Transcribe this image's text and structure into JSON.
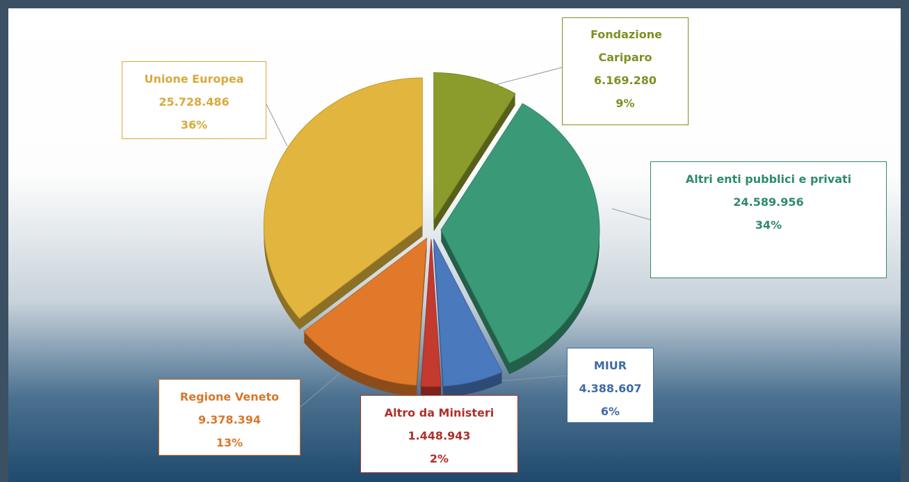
{
  "chart_data": {
    "type": "pie",
    "categories": [
      "Fondazione Cariparo",
      "Altri enti pubblici  e privati",
      "MIUR",
      "Altro da Ministeri",
      "Regione Veneto",
      "Unione Europea"
    ],
    "values": [
      6169280,
      24589956,
      4388607,
      1448943,
      9378394,
      25728486
    ],
    "value_labels": [
      "6.169.280",
      "24.589.956",
      "4.388.607",
      "1.448.943",
      "9.378.394",
      "25.728.486"
    ],
    "percentages": [
      9,
      34,
      6,
      2,
      13,
      36
    ],
    "percentage_labels": [
      "9%",
      "34%",
      "6%",
      "2%",
      "13%",
      "36%"
    ],
    "colors": [
      "#8c9c2c",
      "#3a9a78",
      "#4a79be",
      "#c43a2e",
      "#e07a2a",
      "#e2b53e"
    ],
    "label_colors": [
      "#7f8f22",
      "#2e8a6a",
      "#3f6aa8",
      "#b0302a",
      "#d8772a",
      "#d9a93a"
    ]
  }
}
